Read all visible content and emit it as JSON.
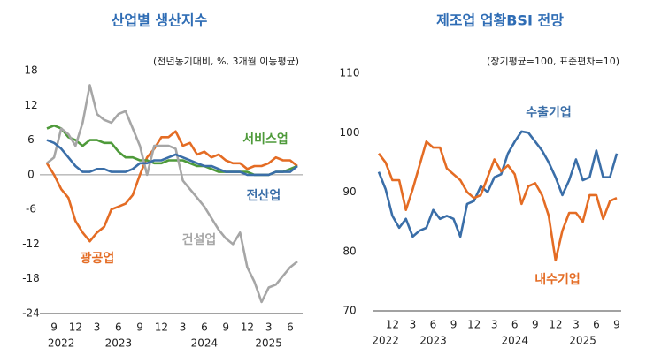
{
  "chart_data": [
    {
      "type": "line",
      "title": "산업별 생산지수",
      "subtitle": "(전년동기대비, %, 3개월 이동평균)",
      "categories": [
        null,
        "9",
        null,
        null,
        "12",
        null,
        null,
        "3",
        null,
        null,
        "6",
        null,
        null,
        "9",
        null,
        null,
        "12",
        null,
        null,
        "3",
        null,
        null,
        "6",
        null,
        null,
        "9",
        null,
        null,
        "12",
        null,
        null,
        "3",
        null,
        null,
        "6",
        null
      ],
      "year_labels": [
        null,
        null,
        "2022",
        null,
        null,
        null,
        null,
        null,
        null,
        null,
        "2023",
        null,
        null,
        null,
        null,
        null,
        null,
        null,
        null,
        null,
        null,
        null,
        "2024",
        null,
        null,
        null,
        null,
        null,
        null,
        null,
        null,
        "2025",
        null,
        null,
        null,
        null
      ],
      "ylim": [
        -24,
        18
      ],
      "yticks": [
        -24,
        -18,
        -12,
        -6,
        0,
        6,
        12,
        18
      ],
      "series": [
        {
          "name": "광공업",
          "color": "#e46c24",
          "values": [
            2,
            0,
            -2.5,
            -4,
            -8,
            -10,
            -11.5,
            -10,
            -9,
            -6,
            -5.5,
            -5,
            -3.5,
            0,
            3,
            4.5,
            6.5,
            6.5,
            7.5,
            5,
            5.5,
            3.5,
            4,
            3,
            3.5,
            2.5,
            2,
            2,
            1,
            1.5,
            1.5,
            2,
            3,
            2.5,
            2.5,
            1.5
          ]
        },
        {
          "name": "서비스업",
          "color": "#4e9a3a",
          "values": [
            8,
            8.5,
            8,
            6.5,
            6,
            5,
            6,
            6,
            5.5,
            5.5,
            4,
            3,
            3,
            2.5,
            2.5,
            2,
            2,
            2.5,
            2.5,
            2.5,
            2,
            1.5,
            1.5,
            1,
            0.5,
            0.5,
            0.5,
            0.5,
            0.5,
            0,
            0,
            0,
            0.5,
            0.5,
            1,
            1.5
          ]
        },
        {
          "name": "건설업",
          "color": "#a6a6a6",
          "values": [
            2,
            3,
            8,
            7,
            5,
            9,
            15.5,
            10.5,
            9.5,
            9,
            10.5,
            11,
            8,
            5,
            0,
            5,
            5,
            5,
            4.5,
            -1,
            -2.5,
            -4,
            -5.5,
            -7.5,
            -9.5,
            -11,
            -12,
            -10,
            -16,
            -18.5,
            -22,
            -19.5,
            -19,
            -17.5,
            -16,
            -15
          ]
        },
        {
          "name": "전산업",
          "color": "#3a6ea8",
          "values": [
            6,
            5.5,
            4.5,
            3,
            1.5,
            0.5,
            0.5,
            1,
            1,
            0.5,
            0.5,
            0.5,
            1,
            2,
            2,
            2.5,
            2.5,
            3,
            3.5,
            3,
            2.5,
            2,
            1.5,
            1.5,
            1,
            0.5,
            0.5,
            0.5,
            0,
            0,
            0,
            0,
            0.5,
            0.5,
            0.5,
            1.5
          ]
        }
      ]
    },
    {
      "type": "line",
      "title": "제조업 업황BSI 전망",
      "subtitle": "(장기평균=100, 표준편차=10)",
      "categories": [
        null,
        null,
        "12",
        null,
        null,
        "3",
        null,
        null,
        "6",
        null,
        null,
        "9",
        null,
        null,
        "12",
        null,
        null,
        "3",
        null,
        null,
        "6",
        null,
        null,
        "9",
        null,
        null,
        "12",
        null,
        null,
        "3",
        null,
        null,
        "6",
        null,
        null,
        "9"
      ],
      "year_labels": [
        null,
        "2022",
        null,
        null,
        null,
        null,
        null,
        null,
        "2023",
        null,
        null,
        null,
        null,
        null,
        null,
        null,
        null,
        null,
        null,
        null,
        "2024",
        null,
        null,
        null,
        null,
        null,
        null,
        null,
        null,
        null,
        "2025",
        null,
        null,
        null,
        null,
        null
      ],
      "ylim": [
        70,
        110
      ],
      "yticks": [
        70,
        80,
        90,
        100,
        110
      ],
      "series": [
        {
          "name": "수출기업",
          "color": "#3a6ea8",
          "values": [
            93.4,
            90.5,
            86,
            84,
            85.5,
            82.5,
            83.5,
            84,
            87,
            85.5,
            86,
            85.5,
            82.5,
            88,
            88.5,
            91,
            90,
            92.5,
            93,
            96.5,
            98.5,
            100.2,
            100,
            98.5,
            97,
            95,
            92.5,
            89.5,
            92,
            95.5,
            92,
            92.5,
            97,
            92.5,
            92.5,
            96.5
          ]
        },
        {
          "name": "내수기업",
          "color": "#e46c24",
          "values": [
            96.5,
            95,
            92,
            92,
            87,
            90.5,
            94.5,
            98.5,
            97.5,
            97.5,
            94,
            93,
            92,
            90,
            89,
            89.5,
            92.5,
            95.5,
            93.5,
            94.5,
            93,
            88,
            91,
            91.5,
            89.5,
            86,
            78.5,
            83.5,
            86.5,
            86.5,
            85,
            89.5,
            89.5,
            85.5,
            88.5,
            89
          ]
        }
      ]
    }
  ]
}
